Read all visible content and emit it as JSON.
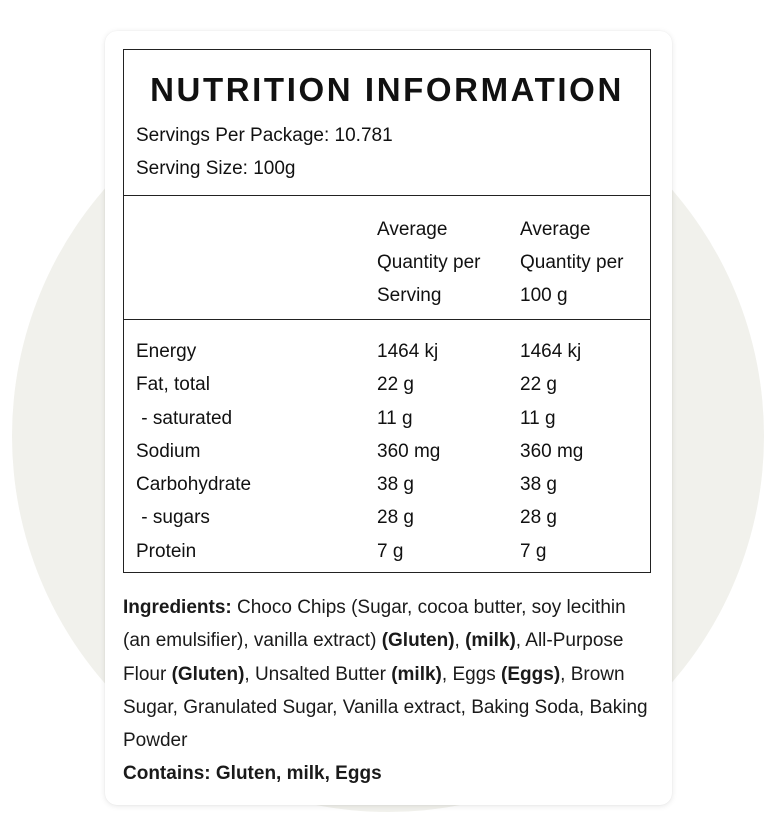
{
  "label": {
    "title": "NUTRITION INFORMATION",
    "servings_per_package": "Servings Per Package: 10.781",
    "serving_size": "Serving Size: 100g",
    "columns": [
      "Average\nQuantity per\nServing",
      "Average\nQuantity per\n100 g"
    ],
    "rows": [
      {
        "name": "Energy",
        "per_serving": "1464 kj",
        "per_100g": "1464 kj"
      },
      {
        "name": "Fat, total",
        "per_serving": "22 g",
        "per_100g": "22 g"
      },
      {
        "name": " - saturated",
        "per_serving": "11 g",
        "per_100g": "11 g"
      },
      {
        "name": "Sodium",
        "per_serving": "360 mg",
        "per_100g": "360 mg"
      },
      {
        "name": "Carbohydrate",
        "per_serving": "38 g",
        "per_100g": "38 g"
      },
      {
        "name": " - sugars",
        "per_serving": "28 g",
        "per_100g": "28 g"
      },
      {
        "name": "Protein",
        "per_serving": "7 g",
        "per_100g": "7 g"
      }
    ]
  },
  "ingredients": {
    "heading": "Ingredients:",
    "parts": [
      " Choco Chips (Sugar, cocoa butter, soy lecithin (an emulsifier), vanilla extract) ",
      "(Gluten)",
      ", ",
      "(milk)",
      ", All-Purpose Flour ",
      "(Gluten)",
      ", Unsalted Butter ",
      "(milk)",
      ", Eggs ",
      "(Eggs)",
      ", Brown Sugar, Granulated Sugar, Vanilla extract, Baking Soda, Baking Powder"
    ],
    "contains": "Contains: Gluten, milk, Eggs"
  }
}
